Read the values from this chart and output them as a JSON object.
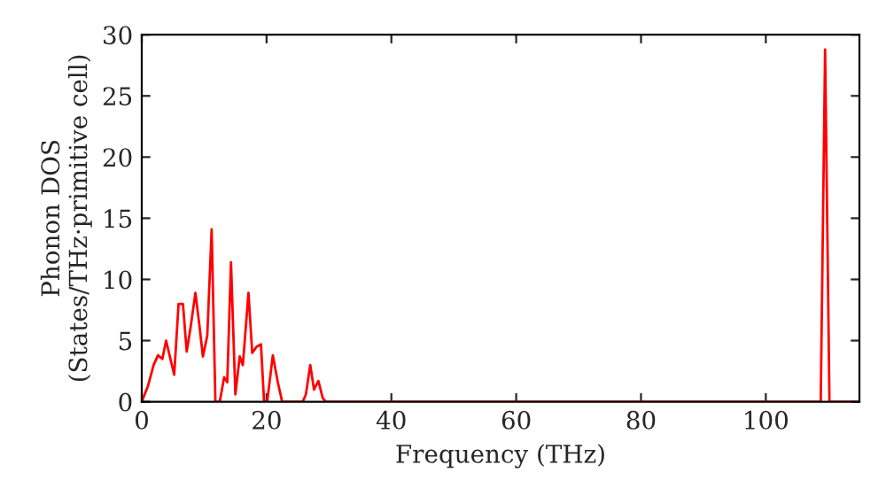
{
  "chart_data": {
    "type": "line",
    "xlabel": "Frequency (THz)",
    "ylabel": "Phonon DOS\n(States/THz·primitive cell)",
    "series": [
      {
        "color": "#ff0000",
        "x": [
          0,
          1.0,
          1.9,
          2.6,
          3.3,
          3.9,
          4.5,
          5.2,
          5.9,
          6.6,
          7.2,
          7.8,
          8.6,
          9.2,
          9.8,
          10.5,
          11.2,
          11.8,
          12.5,
          13.2,
          13.7,
          14.3,
          15.0,
          15.7,
          16.2,
          17.1,
          17.7,
          18.4,
          19.1,
          19.6,
          20.1,
          21.0,
          21.8,
          22.5,
          25.8,
          26.3,
          27.0,
          27.6,
          28.3,
          29.0,
          29.5,
          108.8,
          109.5,
          110.2,
          115
        ],
        "values": [
          0,
          1.3,
          3.0,
          3.8,
          3.5,
          5.0,
          3.7,
          2.2,
          8.0,
          8.0,
          4.1,
          6.0,
          8.9,
          6.4,
          3.7,
          5.4,
          14.1,
          0,
          0,
          2.0,
          1.6,
          11.4,
          0.6,
          3.7,
          3.0,
          8.9,
          4.0,
          4.5,
          4.7,
          0,
          0,
          3.8,
          1.6,
          0,
          0,
          0.6,
          3.0,
          1.0,
          1.7,
          0.3,
          0,
          0,
          28.8,
          0,
          0
        ]
      }
    ],
    "xlim": [
      0,
      115
    ],
    "ylim": [
      0,
      30
    ],
    "xticks": [
      0,
      20,
      40,
      60,
      80,
      100
    ],
    "yticks": [
      0,
      5,
      10,
      15,
      20,
      25,
      30
    ],
    "grid": false,
    "legend": false
  }
}
